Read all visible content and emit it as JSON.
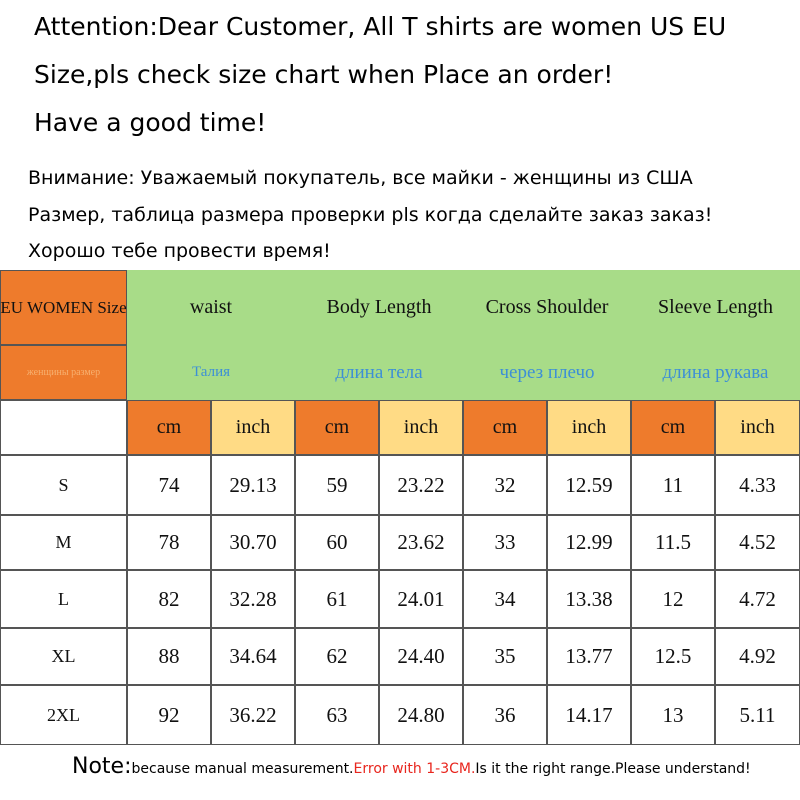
{
  "header": {
    "lines_en": [
      "Attention:Dear Customer, All T shirts are women US EU",
      "Size,pls check size chart when Place an order!",
      "Have a good time!"
    ],
    "lines_ru": [
      "Внимание: Уважаемый покупатель, все майки - женщины из США",
      "Размер, таблица размера проверки pls когда сделайте заказ заказ!",
      "Хорошо тебе провести время!"
    ]
  },
  "table": {
    "corner": "EU WOMEN Size",
    "corner_ru": "женщины размер",
    "columns": [
      "waist",
      "Body Length",
      "Cross Shoulder",
      "Sleeve Length"
    ],
    "columns_ru": [
      "Талия",
      "длина тела",
      "через плечо",
      "длина рукава"
    ],
    "units": [
      "cm",
      "inch"
    ],
    "rows": [
      [
        "S",
        "74",
        "29.13",
        "59",
        "23.22",
        "32",
        "12.59",
        "11",
        "4.33"
      ],
      [
        "M",
        "78",
        "30.70",
        "60",
        "23.62",
        "33",
        "12.99",
        "11.5",
        "4.52"
      ],
      [
        "L",
        "82",
        "32.28",
        "61",
        "24.01",
        "34",
        "13.38",
        "12",
        "4.72"
      ],
      [
        "XL",
        "88",
        "34.64",
        "62",
        "24.40",
        "35",
        "13.77",
        "12.5",
        "4.92"
      ],
      [
        "2XL",
        "92",
        "36.22",
        "63",
        "24.80",
        "36",
        "14.17",
        "13",
        "5.11"
      ]
    ]
  },
  "note": {
    "label": "Note:",
    "text_1": "because manual measurement.",
    "warning": "Error with 1-3CM.",
    "text_2": "Is it the right range.Please understand!"
  }
}
